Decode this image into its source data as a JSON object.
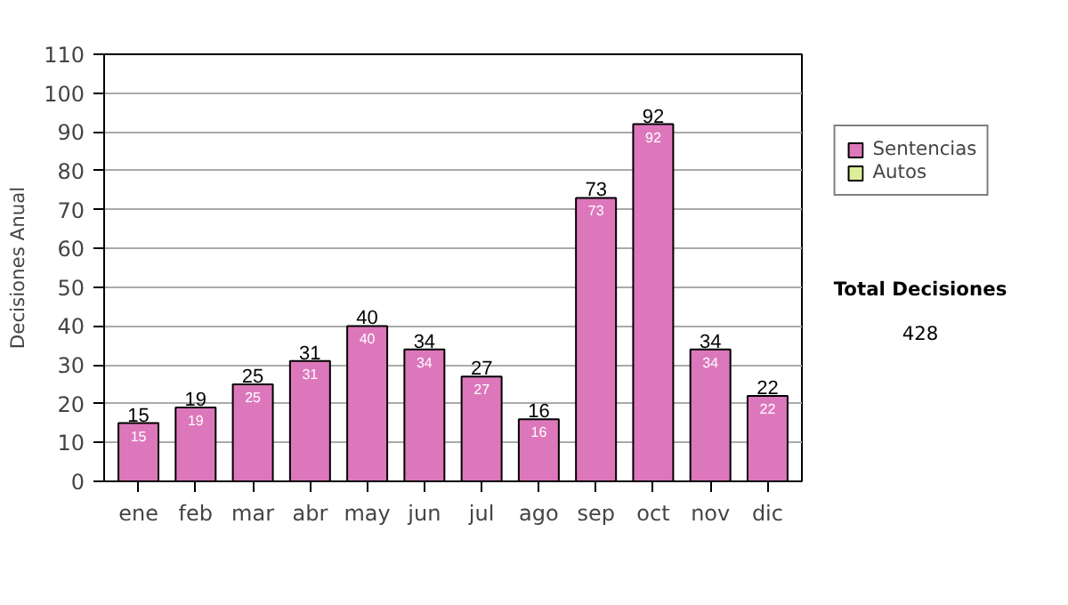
{
  "chart_data": {
    "type": "bar",
    "ylabel": "Decisiones Anual",
    "categories": [
      "ene",
      "feb",
      "mar",
      "abr",
      "may",
      "jun",
      "jul",
      "ago",
      "sep",
      "oct",
      "nov",
      "dic"
    ],
    "series": [
      {
        "name": "Sentencias",
        "color": "#dd77bb",
        "values": [
          15,
          19,
          25,
          31,
          40,
          34,
          27,
          16,
          73,
          92,
          34,
          22
        ],
        "value_labels": [
          "15",
          "19",
          "25",
          "31",
          "40",
          "34",
          "27",
          "16",
          "73",
          "92",
          "34",
          "22"
        ]
      },
      {
        "name": "Autos",
        "color": "#ddee99",
        "values": [
          null,
          null,
          null,
          null,
          null,
          null,
          null,
          null,
          null,
          null,
          null,
          null
        ]
      }
    ],
    "ylim": [
      0,
      110
    ],
    "yticks": [
      0,
      10,
      20,
      30,
      40,
      50,
      60,
      70,
      80,
      90,
      100,
      110
    ],
    "grid": "y",
    "legend": "right",
    "annotations": [
      "Total Decisiones",
      "428",
      {
        "text": "15",
        "x": "ene",
        "y": 15
      },
      {
        "text": "19",
        "x": "feb",
        "y": 19
      },
      {
        "text": "25",
        "x": "mar",
        "y": 25
      },
      {
        "text": "31",
        "x": "abr",
        "y": 31
      },
      {
        "text": "40",
        "x": "may",
        "y": 40
      },
      {
        "text": "34",
        "x": "jun",
        "y": 34
      },
      {
        "text": "27",
        "x": "jul",
        "y": 27
      },
      {
        "text": "16",
        "x": "ago",
        "y": 16
      },
      {
        "text": "73",
        "x": "sep",
        "y": 73
      },
      {
        "text": "92",
        "x": "oct",
        "y": 92
      },
      {
        "text": "34",
        "x": "nov",
        "y": 34
      },
      {
        "text": "22",
        "x": "dic",
        "y": 22
      }
    ]
  }
}
